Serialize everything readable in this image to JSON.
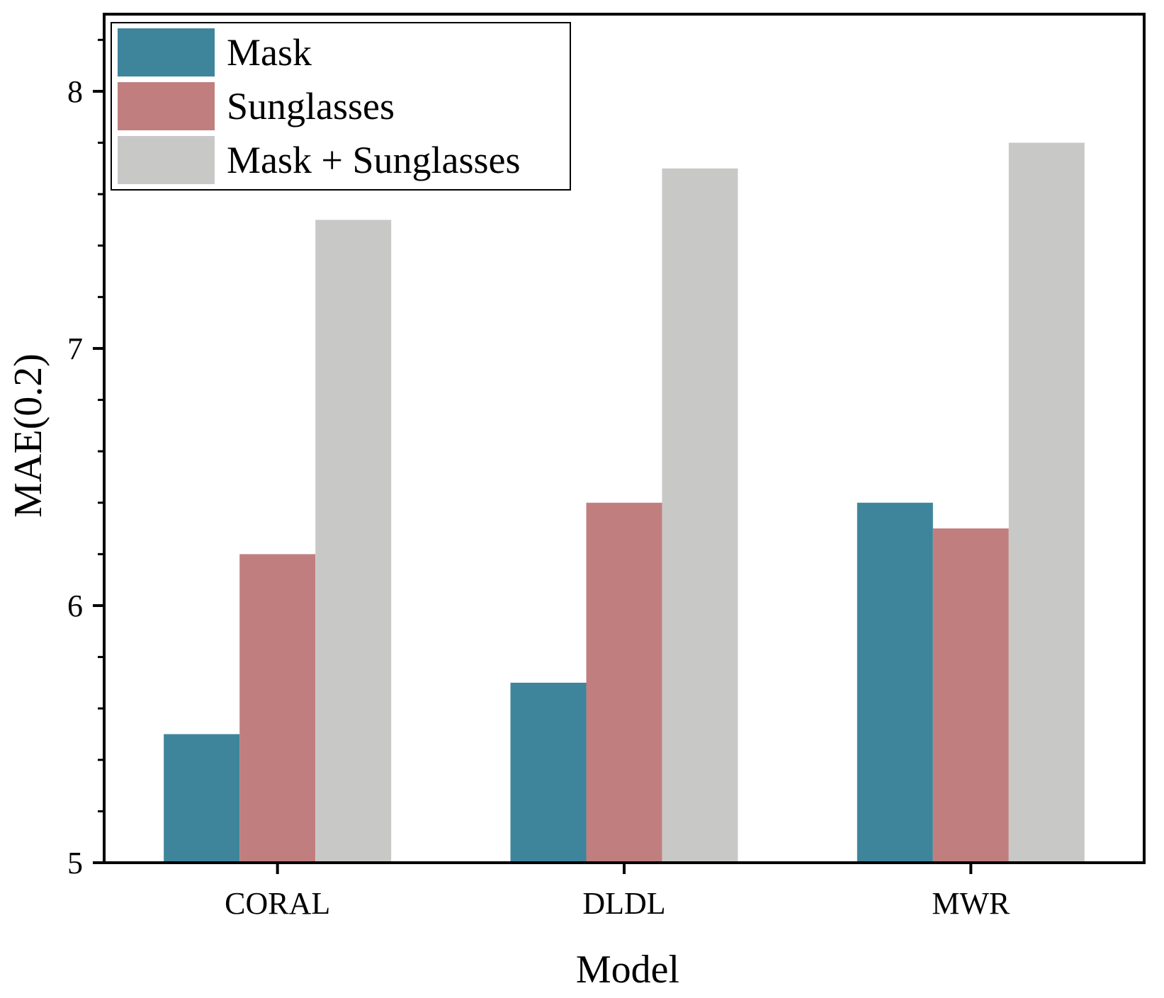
{
  "chart_data": {
    "type": "bar",
    "title": "",
    "xlabel": "Model",
    "ylabel": "MAE(0.2)",
    "categories": [
      "CORAL",
      "DLDL",
      "MWR"
    ],
    "series": [
      {
        "name": "Mask",
        "values": [
          5.5,
          5.7,
          6.4
        ],
        "color": "#3e859c"
      },
      {
        "name": "Sunglasses",
        "values": [
          6.2,
          6.4,
          6.3
        ],
        "color": "#c07f7e"
      },
      {
        "name": "Mask + Sunglasses",
        "values": [
          7.5,
          7.7,
          7.8
        ],
        "color": "#c8c9c7"
      }
    ],
    "ylim": [
      5,
      8.3
    ],
    "yticks": [
      "5",
      "6",
      "7",
      "8"
    ],
    "ytick_values": [
      5,
      6,
      7,
      8
    ],
    "y_minor_step": 0.2,
    "grid": false,
    "legend_position": "top-left"
  }
}
